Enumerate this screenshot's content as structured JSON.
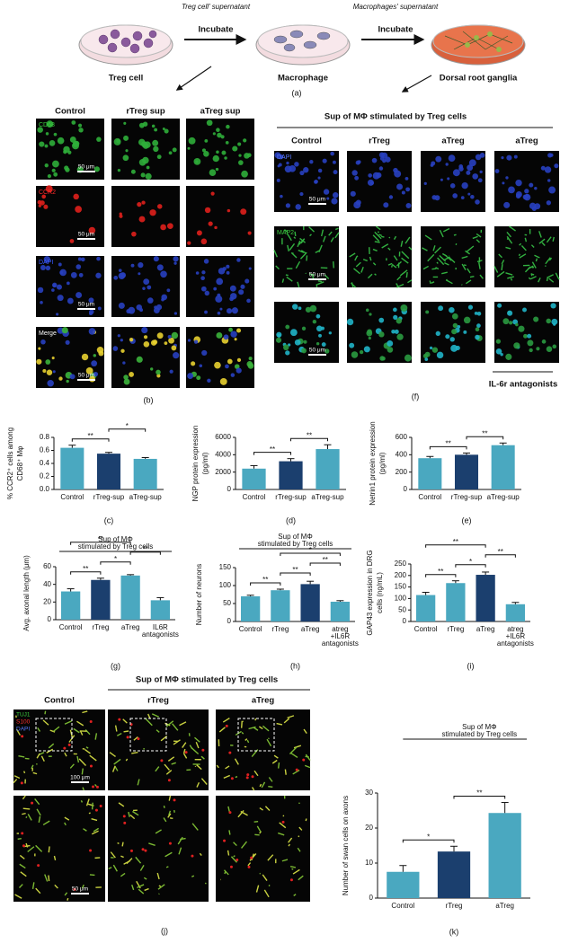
{
  "schematic": {
    "label_left": "Treg cell' supernatant",
    "label_right": "Macrophages' supernatant",
    "arrows": [
      "Incubate",
      "Incubate"
    ],
    "dishes": [
      "Treg cell",
      "Macrophage",
      "Dorsal root ganglia"
    ],
    "caption": "(a)"
  },
  "panel_b": {
    "columns": [
      "Control",
      "rTreg sup",
      "aTreg sup"
    ],
    "rows": [
      "CD68",
      "CCR2",
      "DAPI",
      "Merge"
    ],
    "scale_bar": "50 μm",
    "caption": "(b)"
  },
  "panel_f": {
    "title": "Sup of MΦ stimulated by Treg cells",
    "columns": [
      "Control",
      "rTreg",
      "aTreg",
      "aTreg"
    ],
    "rows": [
      "DAPI",
      "MAP2"
    ],
    "scale_bar": "50 μm",
    "group_label": "IL-6r antagonists",
    "caption": "(f)"
  },
  "panel_j": {
    "title": "Sup of MΦ stimulated by Treg cells",
    "columns": [
      "Control",
      "rTreg",
      "aTreg"
    ],
    "stains": [
      "TUJ1",
      "S100",
      "DAPI"
    ],
    "scale_bars": [
      "100 μm",
      "50 μm"
    ],
    "caption": "(j)"
  },
  "chart_data": [
    {
      "type": "bar",
      "ylabel": [
        "% CCR2⁺ cells among",
        "CD68⁺ Mφ"
      ],
      "categories": [
        "Control",
        "rTreg-sup",
        "aTreg-sup"
      ],
      "values": [
        0.64,
        0.55,
        0.47
      ],
      "errors": [
        0.04,
        0.02,
        0.02
      ],
      "colors": [
        "#4aa8c0",
        "#1b3f6e",
        "#4aa8c0"
      ],
      "ylim": [
        0,
        0.8
      ],
      "yticks": [
        {
          "value": 0,
          "label": "0.0"
        },
        0.2,
        0.4,
        0.6,
        0.8
      ],
      "significance": [
        {
          "between": [
            0,
            1
          ],
          "label": "**"
        },
        {
          "between": [
            1,
            2
          ],
          "label": "*"
        }
      ],
      "caption": "(c)"
    },
    {
      "type": "bar",
      "ylabel": [
        "NGP protein expression",
        "(pg/ml)"
      ],
      "categories": [
        "Control",
        "rTreg-sup",
        "aTreg-sup"
      ],
      "values": [
        2400,
        3250,
        4650
      ],
      "errors": [
        350,
        300,
        500
      ],
      "colors": [
        "#4aa8c0",
        "#1b3f6e",
        "#4aa8c0"
      ],
      "ylim": [
        0,
        6000
      ],
      "yticks": [
        0,
        2000,
        4000,
        6000
      ],
      "significance": [
        {
          "between": [
            0,
            1
          ],
          "label": "**"
        },
        {
          "between": [
            1,
            2
          ],
          "label": "**"
        }
      ],
      "caption": "(d)"
    },
    {
      "type": "bar",
      "ylabel": [
        "Netrin1 protein expression",
        "(pg/ml)"
      ],
      "categories": [
        "Control",
        "rTreg-sup",
        "aTreg-sup"
      ],
      "values": [
        360,
        400,
        510
      ],
      "errors": [
        20,
        20,
        25
      ],
      "colors": [
        "#4aa8c0",
        "#1b3f6e",
        "#4aa8c0"
      ],
      "ylim": [
        0,
        600
      ],
      "yticks": [
        0,
        200,
        400,
        600
      ],
      "significance": [
        {
          "between": [
            0,
            1
          ],
          "label": "**"
        },
        {
          "between": [
            1,
            2
          ],
          "label": "**"
        }
      ],
      "caption": "(e)"
    },
    {
      "type": "bar",
      "ylabel": [
        "Avg. axonal length (μm)"
      ],
      "annotation": [
        "Sup of MΦ",
        "stimulated by Treg cells"
      ],
      "categories": [
        "Control",
        "rTreg",
        "aTreg",
        [
          "IL6R",
          "antagonists"
        ]
      ],
      "values": [
        32,
        45,
        50,
        22
      ],
      "errors": [
        3,
        2,
        1,
        3
      ],
      "colors": [
        "#4aa8c0",
        "#1b3f6e",
        "#4aa8c0",
        "#4aa8c0"
      ],
      "ylim": [
        0,
        60
      ],
      "yticks": [
        0,
        20,
        40,
        60
      ],
      "significance": [
        {
          "between": [
            0,
            1
          ],
          "label": "**"
        },
        {
          "between": [
            1,
            2
          ],
          "label": "*"
        },
        {
          "between": [
            2,
            3
          ],
          "label": "**"
        },
        {
          "between": [
            0,
            2
          ],
          "label": "**"
        }
      ],
      "caption": "(g)"
    },
    {
      "type": "bar",
      "ylabel": [
        "Number of neurons"
      ],
      "annotation": [
        "Sup of MΦ",
        "stimulated by Treg cells"
      ],
      "categories": [
        "Control",
        "rTreg",
        "aTreg",
        [
          "atreg",
          "+IL6R",
          "antagonists"
        ]
      ],
      "values": [
        70,
        87,
        104,
        55
      ],
      "errors": [
        3,
        3,
        8,
        3
      ],
      "colors": [
        "#4aa8c0",
        "#4aa8c0",
        "#1b3f6e",
        "#4aa8c0"
      ],
      "ylim": [
        0,
        150
      ],
      "yticks": [
        0,
        50,
        100,
        150
      ],
      "significance": [
        {
          "between": [
            0,
            1
          ],
          "label": "**"
        },
        {
          "between": [
            1,
            2
          ],
          "label": "**"
        },
        {
          "between": [
            2,
            3
          ],
          "label": "**"
        },
        {
          "between": [
            1,
            3
          ],
          "label": "*"
        }
      ],
      "caption": "(h)"
    },
    {
      "type": "bar",
      "ylabel": [
        "GAP43 expression in DRG",
        "cells (ng/mL)"
      ],
      "categories": [
        "Control",
        "rTreg",
        "aTreg",
        [
          "atreg",
          "+IL6R",
          "antagonists"
        ]
      ],
      "values": [
        115,
        167,
        203,
        75
      ],
      "errors": [
        12,
        10,
        12,
        8
      ],
      "colors": [
        "#4aa8c0",
        "#4aa8c0",
        "#1b3f6e",
        "#4aa8c0"
      ],
      "ylim": [
        0,
        250
      ],
      "yticks": [
        0,
        50,
        100,
        150,
        200,
        250
      ],
      "significance": [
        {
          "between": [
            0,
            1
          ],
          "label": "**"
        },
        {
          "between": [
            1,
            2
          ],
          "label": "*"
        },
        {
          "between": [
            2,
            3
          ],
          "label": "**"
        },
        {
          "between": [
            0,
            2
          ],
          "label": "**"
        }
      ],
      "caption": "(i)"
    },
    {
      "type": "bar",
      "ylabel": [
        "Number of swan cells on axons"
      ],
      "annotation": [
        "Sup of MΦ",
        "stimulated by Treg cells"
      ],
      "categories": [
        "Control",
        "rTreg",
        "aTreg"
      ],
      "values": [
        7.5,
        13.3,
        24.3
      ],
      "errors": [
        1.8,
        1.5,
        3
      ],
      "colors": [
        "#4aa8c0",
        "#1b3f6e",
        "#4aa8c0"
      ],
      "ylim": [
        0,
        30
      ],
      "yticks": [
        0,
        10,
        20,
        30
      ],
      "significance": [
        {
          "between": [
            0,
            1
          ],
          "label": "*"
        },
        {
          "between": [
            1,
            2
          ],
          "label": "**"
        }
      ],
      "caption": "(k)"
    }
  ]
}
